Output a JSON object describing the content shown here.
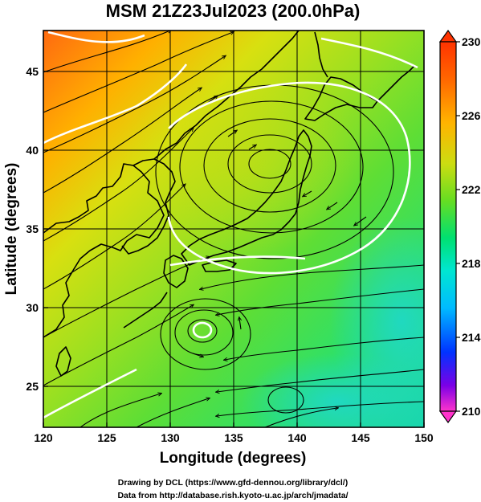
{
  "title": "MSM 21Z23Jul2023 (200.0hPa)",
  "xlabel": "Longitude (degrees)",
  "ylabel": "Latitude  (degrees)",
  "credit_line1": "Drawing by DCL (https://www.gfd-dennou.org/library/dcl/)",
  "credit_line2": "Data from http://database.rish.kyoto-u.ac.jp/arch/jmadata/",
  "map": {
    "lon_range": [
      120,
      150
    ],
    "lat_range": [
      22.4,
      47.6
    ],
    "lon_ticks": [
      "120",
      "125",
      "130",
      "135",
      "140",
      "145",
      "150"
    ],
    "lat_ticks": [
      "25",
      "30",
      "35",
      "40",
      "45"
    ],
    "lon_tick_values": [
      120,
      125,
      130,
      135,
      140,
      145,
      150
    ],
    "lat_tick_values": [
      25,
      30,
      35,
      40,
      45
    ],
    "grid": true,
    "field": "geopotential-like scalar at 200.0hPa with wind streamlines",
    "vortices": [
      {
        "name": "anticyclone",
        "lon": 137.5,
        "lat": 40.0
      },
      {
        "name": "cyclone",
        "lon": 132.5,
        "lat": 29.3
      }
    ]
  },
  "colorbar": {
    "min": 210,
    "max": 230,
    "tick_labels": [
      "230",
      "226",
      "222",
      "218",
      "214",
      "210"
    ],
    "tick_values": [
      230,
      226,
      222,
      218,
      214,
      210
    ],
    "colors": [
      "#ff33cc",
      "#7a00e6",
      "#0033ff",
      "#00bbff",
      "#00e6d2",
      "#00e070",
      "#66dd22",
      "#ccdd11",
      "#ffb400",
      "#ff6600",
      "#ff3300"
    ]
  }
}
